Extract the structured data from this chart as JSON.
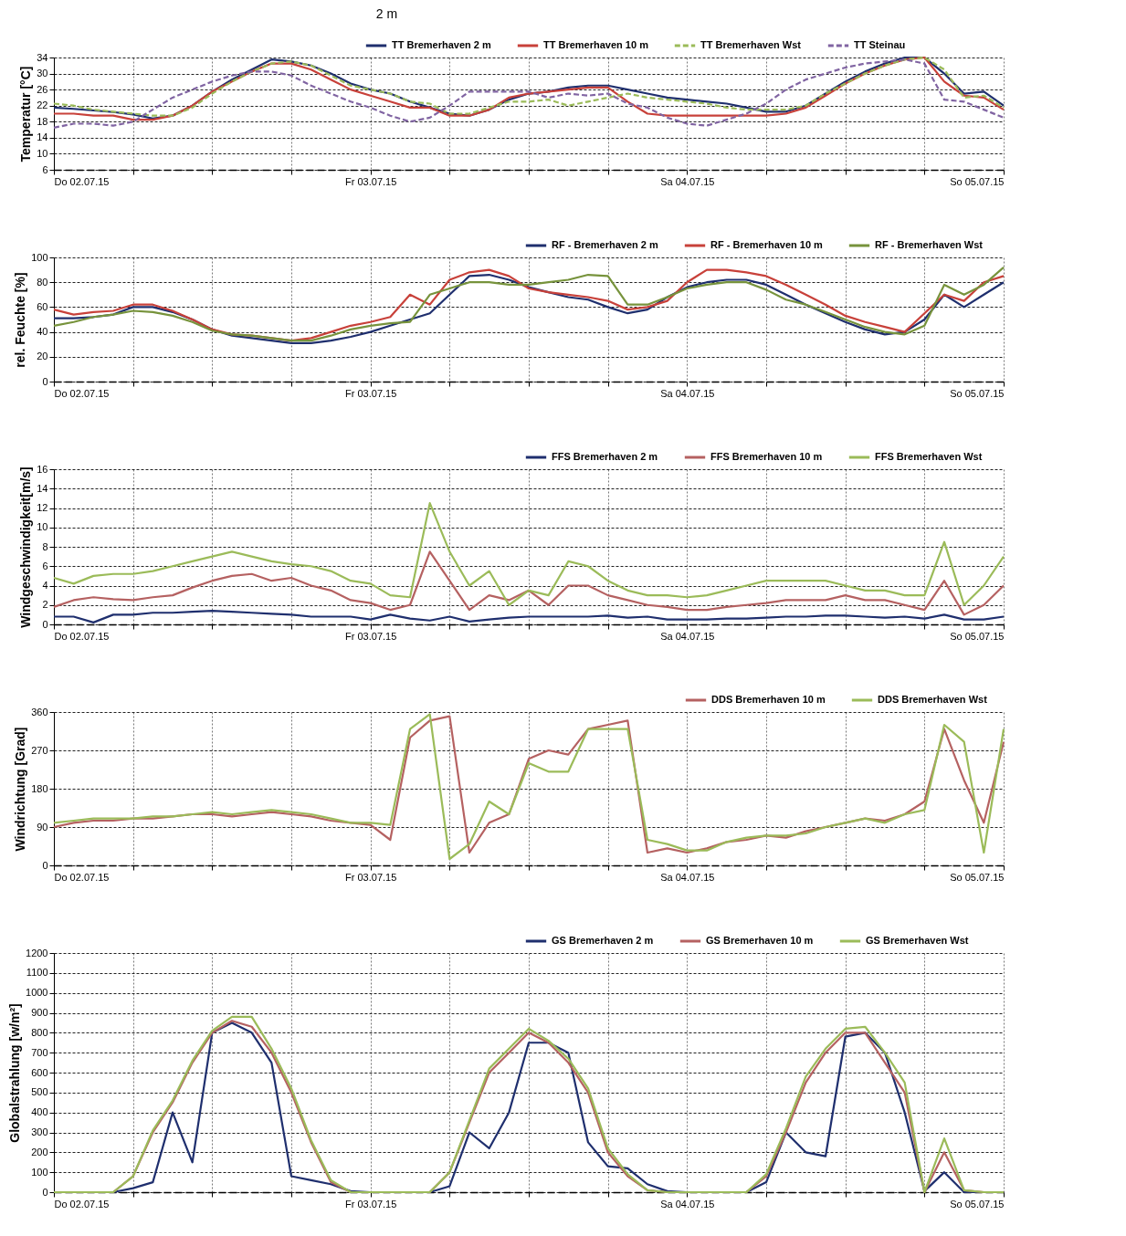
{
  "chart_data": [
    {
      "type": "line",
      "title": "2 m",
      "ylabel": "Temperatur [°C]",
      "ylim": [
        6,
        34
      ],
      "yticks": [
        6,
        10,
        14,
        18,
        22,
        26,
        30,
        34
      ],
      "xlim": [
        "--07-02T00:00",
        "--07-05T00:00"
      ],
      "xticks": [
        {
          "value": "--07-02T00:00",
          "label": "Do  02.07.15"
        },
        {
          "value": "--07-02T06:00",
          "label": null
        },
        {
          "value": "--07-02T12:00",
          "label": null
        },
        {
          "value": "--07-02T18:00",
          "label": null
        },
        {
          "value": "--07-03T00:00",
          "label": "Fr  03.07.15"
        },
        {
          "value": "--07-03T06:00",
          "label": null
        },
        {
          "value": "--07-03T12:00",
          "label": null
        },
        {
          "value": "--07-03T18:00",
          "label": null
        },
        {
          "value": "--07-04T00:00",
          "label": "Sa  04.07.15"
        },
        {
          "value": "--07-04T06:00",
          "label": null
        },
        {
          "value": "--07-04T12:00",
          "label": null
        },
        {
          "value": "--07-04T18:00",
          "label": null
        },
        {
          "value": "--07-05T00:00",
          "label": "So  05.07.15"
        }
      ],
      "grid": true,
      "legend": "top right",
      "x": [
        "--07-02T00:00",
        "--07-02T01:30",
        "--07-02T03:00",
        "--07-02T04:30",
        "--07-02T06:00",
        "--07-02T07:30",
        "--07-02T09:00",
        "--07-02T10:30",
        "--07-02T12:00",
        "--07-02T13:30",
        "--07-02T15:00",
        "--07-02T16:30",
        "--07-02T18:00",
        "--07-02T19:30",
        "--07-02T21:00",
        "--07-02T22:30",
        "--07-03T00:00",
        "--07-03T01:30",
        "--07-03T03:00",
        "--07-03T04:30",
        "--07-03T06:00",
        "--07-03T07:30",
        "--07-03T09:00",
        "--07-03T10:30",
        "--07-03T12:00",
        "--07-03T13:30",
        "--07-03T15:00",
        "--07-03T16:30",
        "--07-03T18:00",
        "--07-03T19:30",
        "--07-03T21:00",
        "--07-03T22:30",
        "--07-04T00:00",
        "--07-04T01:30",
        "--07-04T03:00",
        "--07-04T04:30",
        "--07-04T06:00",
        "--07-04T07:30",
        "--07-04T09:00",
        "--07-04T10:30",
        "--07-04T12:00",
        "--07-04T13:30",
        "--07-04T15:00",
        "--07-04T16:30",
        "--07-04T18:00",
        "--07-04T19:30",
        "--07-04T21:00",
        "--07-04T22:30",
        "--07-05T00:00"
      ],
      "series": [
        {
          "name": "TT Bremerhaven 2 m",
          "color": "#1f2f6e",
          "line_style": "solid",
          "values": [
            21.5,
            21.2,
            20.8,
            20.4,
            19.8,
            18.8,
            19.5,
            22,
            25.5,
            28.5,
            31,
            33.5,
            33,
            32,
            30,
            27.5,
            26,
            25,
            23,
            21.5,
            20,
            19.5,
            21,
            23.5,
            25,
            25.5,
            26.5,
            27,
            27,
            26,
            25,
            24,
            23.5,
            23,
            22.5,
            21.5,
            20.5,
            20.5,
            22,
            25,
            28,
            30.5,
            32.5,
            34,
            34,
            30,
            25,
            25.5,
            22
          ]
        },
        {
          "name": "TT Bremerhaven 10 m",
          "color": "#c8413a",
          "line_style": "solid",
          "values": [
            20,
            20,
            19.5,
            19.5,
            18.5,
            18.5,
            19.5,
            22,
            25.5,
            28,
            30.5,
            32.5,
            32.5,
            31,
            28.5,
            26,
            24.5,
            23,
            21.5,
            21.5,
            19.5,
            19.5,
            21,
            24,
            25,
            25.5,
            26,
            26.5,
            26.5,
            23,
            20,
            19.5,
            19.5,
            19.5,
            19.5,
            19.5,
            19.5,
            20,
            21.5,
            24.5,
            27.5,
            30,
            32,
            33.5,
            34,
            28,
            24.5,
            24,
            21
          ]
        },
        {
          "name": "TT Bremerhaven Wst",
          "color": "#9bbb59",
          "line_style": "dashed",
          "values": [
            22.5,
            22,
            21,
            20.5,
            20,
            19.5,
            19.5,
            21.5,
            25,
            28,
            30.5,
            32.5,
            33,
            32,
            29.5,
            27,
            26,
            25,
            23,
            22.5,
            20,
            20,
            21.5,
            23,
            23,
            23.5,
            22,
            23,
            24,
            25,
            24,
            23.5,
            23,
            22.5,
            21.5,
            21,
            21,
            21,
            22,
            25,
            27.5,
            30,
            32,
            33.5,
            34,
            31,
            24,
            24.5,
            21.5
          ]
        },
        {
          "name": "TT Steinau",
          "color": "#8064a2",
          "line_style": "dashed",
          "values": [
            16.5,
            17.5,
            17.5,
            17,
            18,
            21,
            24,
            26,
            28,
            29.5,
            30.5,
            30.5,
            29.5,
            27,
            25,
            23,
            21.5,
            19.5,
            18,
            19,
            22,
            25.5,
            25.5,
            25.5,
            25.5,
            24,
            25,
            24.5,
            25,
            22.5,
            21.5,
            19,
            17.5,
            17,
            18.5,
            20,
            22.5,
            26,
            28.5,
            30,
            31.5,
            32.5,
            33,
            33.5,
            32.5,
            23.5,
            23,
            21,
            19
          ]
        }
      ]
    },
    {
      "type": "line",
      "ylabel": "rel. Feuchte [%]",
      "ylim": [
        0,
        100
      ],
      "yticks": [
        0,
        20,
        40,
        60,
        80,
        100
      ],
      "xlim": [
        "--07-02T00:00",
        "--07-05T00:00"
      ],
      "xticks": [
        {
          "value": "--07-02T00:00",
          "label": "Do  02.07.15"
        },
        {
          "value": "--07-02T06:00",
          "label": null
        },
        {
          "value": "--07-02T12:00",
          "label": null
        },
        {
          "value": "--07-02T18:00",
          "label": null
        },
        {
          "value": "--07-03T00:00",
          "label": "Fr  03.07.15"
        },
        {
          "value": "--07-03T06:00",
          "label": null
        },
        {
          "value": "--07-03T12:00",
          "label": null
        },
        {
          "value": "--07-03T18:00",
          "label": null
        },
        {
          "value": "--07-04T00:00",
          "label": "Sa  04.07.15"
        },
        {
          "value": "--07-04T06:00",
          "label": null
        },
        {
          "value": "--07-04T12:00",
          "label": null
        },
        {
          "value": "--07-04T18:00",
          "label": null
        },
        {
          "value": "--07-05T00:00",
          "label": "So  05.07.15"
        }
      ],
      "grid": true,
      "legend": "top right",
      "x": [
        "--07-02T00:00",
        "--07-02T01:30",
        "--07-02T03:00",
        "--07-02T04:30",
        "--07-02T06:00",
        "--07-02T07:30",
        "--07-02T09:00",
        "--07-02T10:30",
        "--07-02T12:00",
        "--07-02T13:30",
        "--07-02T15:00",
        "--07-02T16:30",
        "--07-02T18:00",
        "--07-02T19:30",
        "--07-02T21:00",
        "--07-02T22:30",
        "--07-03T00:00",
        "--07-03T01:30",
        "--07-03T03:00",
        "--07-03T04:30",
        "--07-03T06:00",
        "--07-03T07:30",
        "--07-03T09:00",
        "--07-03T10:30",
        "--07-03T12:00",
        "--07-03T13:30",
        "--07-03T15:00",
        "--07-03T16:30",
        "--07-03T18:00",
        "--07-03T19:30",
        "--07-03T21:00",
        "--07-03T22:30",
        "--07-04T00:00",
        "--07-04T01:30",
        "--07-04T03:00",
        "--07-04T04:30",
        "--07-04T06:00",
        "--07-04T07:30",
        "--07-04T09:00",
        "--07-04T10:30",
        "--07-04T12:00",
        "--07-04T13:30",
        "--07-04T15:00",
        "--07-04T16:30",
        "--07-04T18:00",
        "--07-04T19:30",
        "--07-04T21:00",
        "--07-04T22:30",
        "--07-05T00:00"
      ],
      "series": [
        {
          "name": "RF - Bremerhaven 2 m",
          "color": "#1f2f6e",
          "values": [
            51,
            51,
            52,
            54,
            60,
            60,
            56,
            50,
            42,
            37,
            35,
            33,
            31,
            31,
            33,
            36,
            40,
            45,
            50,
            55,
            70,
            85,
            86,
            82,
            76,
            72,
            68,
            66,
            60,
            55,
            58,
            68,
            76,
            80,
            82,
            82,
            78,
            70,
            62,
            55,
            48,
            42,
            38,
            40,
            50,
            70,
            60,
            70,
            80
          ]
        },
        {
          "name": "RF - Bremerhaven 10 m",
          "color": "#c8413a",
          "values": [
            58,
            54,
            56,
            57,
            62,
            62,
            57,
            50,
            42,
            38,
            37,
            35,
            33,
            35,
            40,
            45,
            48,
            52,
            70,
            62,
            82,
            88,
            90,
            85,
            75,
            72,
            70,
            68,
            65,
            58,
            60,
            65,
            80,
            90,
            90,
            88,
            85,
            78,
            70,
            62,
            53,
            48,
            44,
            40,
            55,
            70,
            65,
            80,
            85
          ]
        },
        {
          "name": "RF - Bremerhaven Wst",
          "color": "#77933c",
          "values": [
            45,
            48,
            52,
            54,
            57,
            56,
            53,
            48,
            41,
            38,
            37,
            35,
            33,
            33,
            37,
            42,
            45,
            47,
            48,
            70,
            75,
            80,
            80,
            78,
            78,
            80,
            82,
            86,
            85,
            62,
            62,
            68,
            75,
            78,
            80,
            80,
            74,
            66,
            62,
            56,
            50,
            44,
            40,
            38,
            45,
            78,
            70,
            78,
            92
          ]
        }
      ]
    },
    {
      "type": "line",
      "ylabel": "Windgeschwindigkeit[m/s]",
      "ylim": [
        0,
        16
      ],
      "yticks": [
        0,
        2,
        4,
        6,
        8,
        10,
        12,
        14,
        16
      ],
      "xlim": [
        "--07-02T00:00",
        "--07-05T00:00"
      ],
      "xticks": [
        {
          "value": "--07-02T00:00",
          "label": "Do  02.07.15"
        },
        {
          "value": "--07-02T06:00",
          "label": null
        },
        {
          "value": "--07-02T12:00",
          "label": null
        },
        {
          "value": "--07-02T18:00",
          "label": null
        },
        {
          "value": "--07-03T00:00",
          "label": "Fr  03.07.15"
        },
        {
          "value": "--07-03T06:00",
          "label": null
        },
        {
          "value": "--07-03T12:00",
          "label": null
        },
        {
          "value": "--07-03T18:00",
          "label": null
        },
        {
          "value": "--07-04T00:00",
          "label": "Sa  04.07.15"
        },
        {
          "value": "--07-04T06:00",
          "label": null
        },
        {
          "value": "--07-04T12:00",
          "label": null
        },
        {
          "value": "--07-04T18:00",
          "label": null
        },
        {
          "value": "--07-05T00:00",
          "label": "So  05.07.15"
        }
      ],
      "grid": true,
      "legend": "top right",
      "x": [
        "--07-02T00:00",
        "--07-02T01:30",
        "--07-02T03:00",
        "--07-02T04:30",
        "--07-02T06:00",
        "--07-02T07:30",
        "--07-02T09:00",
        "--07-02T10:30",
        "--07-02T12:00",
        "--07-02T13:30",
        "--07-02T15:00",
        "--07-02T16:30",
        "--07-02T18:00",
        "--07-02T19:30",
        "--07-02T21:00",
        "--07-02T22:30",
        "--07-03T00:00",
        "--07-03T01:30",
        "--07-03T03:00",
        "--07-03T04:30",
        "--07-03T06:00",
        "--07-03T07:30",
        "--07-03T09:00",
        "--07-03T10:30",
        "--07-03T12:00",
        "--07-03T13:30",
        "--07-03T15:00",
        "--07-03T16:30",
        "--07-03T18:00",
        "--07-03T19:30",
        "--07-03T21:00",
        "--07-03T22:30",
        "--07-04T00:00",
        "--07-04T01:30",
        "--07-04T03:00",
        "--07-04T04:30",
        "--07-04T06:00",
        "--07-04T07:30",
        "--07-04T09:00",
        "--07-04T10:30",
        "--07-04T12:00",
        "--07-04T13:30",
        "--07-04T15:00",
        "--07-04T16:30",
        "--07-04T18:00",
        "--07-04T19:30",
        "--07-04T21:00",
        "--07-04T22:30",
        "--07-05T00:00"
      ],
      "series": [
        {
          "name": "FFS Bremerhaven 2 m",
          "color": "#1f2f6e",
          "values": [
            0.8,
            0.8,
            0.2,
            1,
            1,
            1.2,
            1.2,
            1.3,
            1.4,
            1.3,
            1.2,
            1.1,
            1,
            0.8,
            0.8,
            0.8,
            0.5,
            1,
            0.6,
            0.4,
            0.8,
            0.3,
            0.5,
            0.7,
            0.8,
            0.8,
            0.8,
            0.8,
            0.9,
            0.7,
            0.8,
            0.5,
            0.5,
            0.5,
            0.6,
            0.6,
            0.7,
            0.8,
            0.8,
            0.9,
            0.9,
            0.8,
            0.7,
            0.8,
            0.6,
            1,
            0.5,
            0.5,
            0.8
          ]
        },
        {
          "name": "FFS Bremerhaven 10 m",
          "color": "#b56161",
          "values": [
            1.8,
            2.5,
            2.8,
            2.6,
            2.5,
            2.8,
            3,
            3.8,
            4.5,
            5,
            5.2,
            4.5,
            4.8,
            4,
            3.5,
            2.5,
            2.2,
            1.5,
            2,
            7.5,
            4.5,
            1.5,
            3,
            2.5,
            3.5,
            2,
            4,
            4,
            3,
            2.5,
            2,
            1.8,
            1.5,
            1.5,
            1.8,
            2,
            2.2,
            2.5,
            2.5,
            2.5,
            3,
            2.5,
            2.5,
            2,
            1.5,
            4.5,
            1,
            2,
            4
          ]
        },
        {
          "name": "FFS Bremerhaven Wst",
          "color": "#9bbb59",
          "values": [
            4.8,
            4.2,
            5,
            5.2,
            5.2,
            5.5,
            6,
            6.5,
            7,
            7.5,
            7,
            6.5,
            6.2,
            6,
            5.5,
            4.5,
            4.2,
            3,
            2.8,
            12.5,
            7.5,
            4,
            5.5,
            2,
            3.5,
            3,
            6.5,
            6,
            4.5,
            3.5,
            3,
            3,
            2.8,
            3,
            3.5,
            4,
            4.5,
            4.5,
            4.5,
            4.5,
            4,
            3.5,
            3.5,
            3,
            3,
            8.5,
            2,
            4,
            7
          ]
        }
      ]
    },
    {
      "type": "line",
      "ylabel": "Windrichtung  [Grad]",
      "ylim": [
        0,
        360
      ],
      "yticks": [
        0,
        90,
        180,
        270,
        360
      ],
      "xlim": [
        "--07-02T00:00",
        "--07-05T00:00"
      ],
      "xticks": [
        {
          "value": "--07-02T00:00",
          "label": "Do  02.07.15"
        },
        {
          "value": "--07-02T06:00",
          "label": null
        },
        {
          "value": "--07-02T12:00",
          "label": null
        },
        {
          "value": "--07-02T18:00",
          "label": null
        },
        {
          "value": "--07-03T00:00",
          "label": "Fr  03.07.15"
        },
        {
          "value": "--07-03T06:00",
          "label": null
        },
        {
          "value": "--07-03T12:00",
          "label": null
        },
        {
          "value": "--07-03T18:00",
          "label": null
        },
        {
          "value": "--07-04T00:00",
          "label": "Sa  04.07.15"
        },
        {
          "value": "--07-04T06:00",
          "label": null
        },
        {
          "value": "--07-04T12:00",
          "label": null
        },
        {
          "value": "--07-04T18:00",
          "label": null
        },
        {
          "value": "--07-05T00:00",
          "label": "So  05.07.15"
        }
      ],
      "grid": true,
      "legend": "top right",
      "x": [
        "--07-02T00:00",
        "--07-02T01:30",
        "--07-02T03:00",
        "--07-02T04:30",
        "--07-02T06:00",
        "--07-02T07:30",
        "--07-02T09:00",
        "--07-02T10:30",
        "--07-02T12:00",
        "--07-02T13:30",
        "--07-02T15:00",
        "--07-02T16:30",
        "--07-02T18:00",
        "--07-02T19:30",
        "--07-02T21:00",
        "--07-02T22:30",
        "--07-03T00:00",
        "--07-03T01:30",
        "--07-03T03:00",
        "--07-03T04:30",
        "--07-03T06:00",
        "--07-03T07:30",
        "--07-03T09:00",
        "--07-03T10:30",
        "--07-03T12:00",
        "--07-03T13:30",
        "--07-03T15:00",
        "--07-03T16:30",
        "--07-03T18:00",
        "--07-03T19:30",
        "--07-03T21:00",
        "--07-03T22:30",
        "--07-04T00:00",
        "--07-04T01:30",
        "--07-04T03:00",
        "--07-04T04:30",
        "--07-04T06:00",
        "--07-04T07:30",
        "--07-04T09:00",
        "--07-04T10:30",
        "--07-04T12:00",
        "--07-04T13:30",
        "--07-04T15:00",
        "--07-04T16:30",
        "--07-04T18:00",
        "--07-04T19:30",
        "--07-04T21:00",
        "--07-04T22:30",
        "--07-05T00:00"
      ],
      "series": [
        {
          "name": "DDS Bremerhaven 10 m",
          "color": "#b56161",
          "values": [
            90,
            100,
            105,
            105,
            110,
            110,
            115,
            120,
            120,
            115,
            120,
            125,
            120,
            115,
            105,
            100,
            95,
            60,
            300,
            340,
            350,
            30,
            100,
            120,
            250,
            270,
            260,
            320,
            330,
            340,
            30,
            40,
            30,
            40,
            55,
            60,
            70,
            65,
            80,
            90,
            100,
            110,
            105,
            120,
            150,
            320,
            200,
            100,
            290
          ]
        },
        {
          "name": "DDS Bremerhaven Wst",
          "color": "#9bbb59",
          "values": [
            100,
            105,
            110,
            110,
            110,
            115,
            115,
            120,
            125,
            120,
            125,
            130,
            125,
            120,
            110,
            100,
            100,
            95,
            320,
            355,
            15,
            50,
            150,
            120,
            240,
            220,
            220,
            320,
            320,
            320,
            60,
            50,
            35,
            35,
            55,
            65,
            70,
            70,
            75,
            90,
            100,
            110,
            100,
            120,
            130,
            330,
            290,
            30,
            320
          ]
        }
      ]
    },
    {
      "type": "line",
      "ylabel": "Globalstrahlung  [w/m²]",
      "ylim": [
        0,
        1200
      ],
      "yticks": [
        0,
        100,
        200,
        300,
        400,
        500,
        600,
        700,
        800,
        900,
        1000,
        1100,
        1200
      ],
      "xlim": [
        "--07-02T00:00",
        "--07-05T00:00"
      ],
      "xticks": [
        {
          "value": "--07-02T00:00",
          "label": "Do  02.07.15"
        },
        {
          "value": "--07-02T06:00",
          "label": null
        },
        {
          "value": "--07-02T12:00",
          "label": null
        },
        {
          "value": "--07-02T18:00",
          "label": null
        },
        {
          "value": "--07-03T00:00",
          "label": "Fr  03.07.15"
        },
        {
          "value": "--07-03T06:00",
          "label": null
        },
        {
          "value": "--07-03T12:00",
          "label": null
        },
        {
          "value": "--07-03T18:00",
          "label": null
        },
        {
          "value": "--07-04T00:00",
          "label": "Sa  04.07.15"
        },
        {
          "value": "--07-04T06:00",
          "label": null
        },
        {
          "value": "--07-04T12:00",
          "label": null
        },
        {
          "value": "--07-04T18:00",
          "label": null
        },
        {
          "value": "--07-05T00:00",
          "label": "So  05.07.15"
        }
      ],
      "grid": true,
      "legend": "top right",
      "x": [
        "--07-02T00:00",
        "--07-02T01:30",
        "--07-02T03:00",
        "--07-02T04:30",
        "--07-02T06:00",
        "--07-02T07:30",
        "--07-02T09:00",
        "--07-02T10:30",
        "--07-02T12:00",
        "--07-02T13:30",
        "--07-02T15:00",
        "--07-02T16:30",
        "--07-02T18:00",
        "--07-02T19:30",
        "--07-02T21:00",
        "--07-02T22:30",
        "--07-03T00:00",
        "--07-03T01:30",
        "--07-03T03:00",
        "--07-03T04:30",
        "--07-03T06:00",
        "--07-03T07:30",
        "--07-03T09:00",
        "--07-03T10:30",
        "--07-03T12:00",
        "--07-03T13:30",
        "--07-03T15:00",
        "--07-03T16:30",
        "--07-03T18:00",
        "--07-03T19:30",
        "--07-03T21:00",
        "--07-03T22:30",
        "--07-04T00:00",
        "--07-04T01:30",
        "--07-04T03:00",
        "--07-04T04:30",
        "--07-04T06:00",
        "--07-04T07:30",
        "--07-04T09:00",
        "--07-04T10:30",
        "--07-04T12:00",
        "--07-04T13:30",
        "--07-04T15:00",
        "--07-04T16:30",
        "--07-04T18:00",
        "--07-04T19:30",
        "--07-04T21:00",
        "--07-04T22:30",
        "--07-05T00:00"
      ],
      "series": [
        {
          "name": "GS Bremerhaven 2 m",
          "color": "#1f2f6e",
          "values": [
            null,
            null,
            0,
            0,
            20,
            50,
            400,
            150,
            800,
            850,
            800,
            650,
            80,
            60,
            40,
            5,
            0,
            0,
            0,
            0,
            30,
            300,
            220,
            400,
            750,
            750,
            700,
            250,
            130,
            120,
            40,
            5,
            0,
            0,
            0,
            0,
            50,
            300,
            200,
            180,
            780,
            800,
            700,
            400,
            5,
            100,
            0,
            0,
            0
          ]
        },
        {
          "name": "GS Bremerhaven 10 m",
          "color": "#b56161",
          "values": [
            null,
            null,
            0,
            0,
            80,
            300,
            450,
            650,
            800,
            860,
            830,
            700,
            500,
            250,
            50,
            0,
            0,
            0,
            0,
            0,
            100,
            350,
            600,
            700,
            800,
            750,
            650,
            500,
            200,
            80,
            10,
            0,
            0,
            0,
            0,
            0,
            80,
            300,
            550,
            700,
            800,
            800,
            650,
            500,
            0,
            200,
            10,
            0,
            0
          ]
        },
        {
          "name": "GS Bremerhaven Wst",
          "color": "#9bbb59",
          "values": [
            0,
            0,
            0,
            0,
            80,
            310,
            460,
            660,
            810,
            880,
            880,
            720,
            520,
            260,
            60,
            0,
            0,
            0,
            0,
            0,
            100,
            360,
            620,
            720,
            820,
            760,
            670,
            520,
            220,
            90,
            10,
            0,
            0,
            0,
            0,
            0,
            90,
            320,
            580,
            720,
            820,
            830,
            700,
            550,
            0,
            270,
            10,
            0,
            0
          ]
        }
      ]
    }
  ]
}
